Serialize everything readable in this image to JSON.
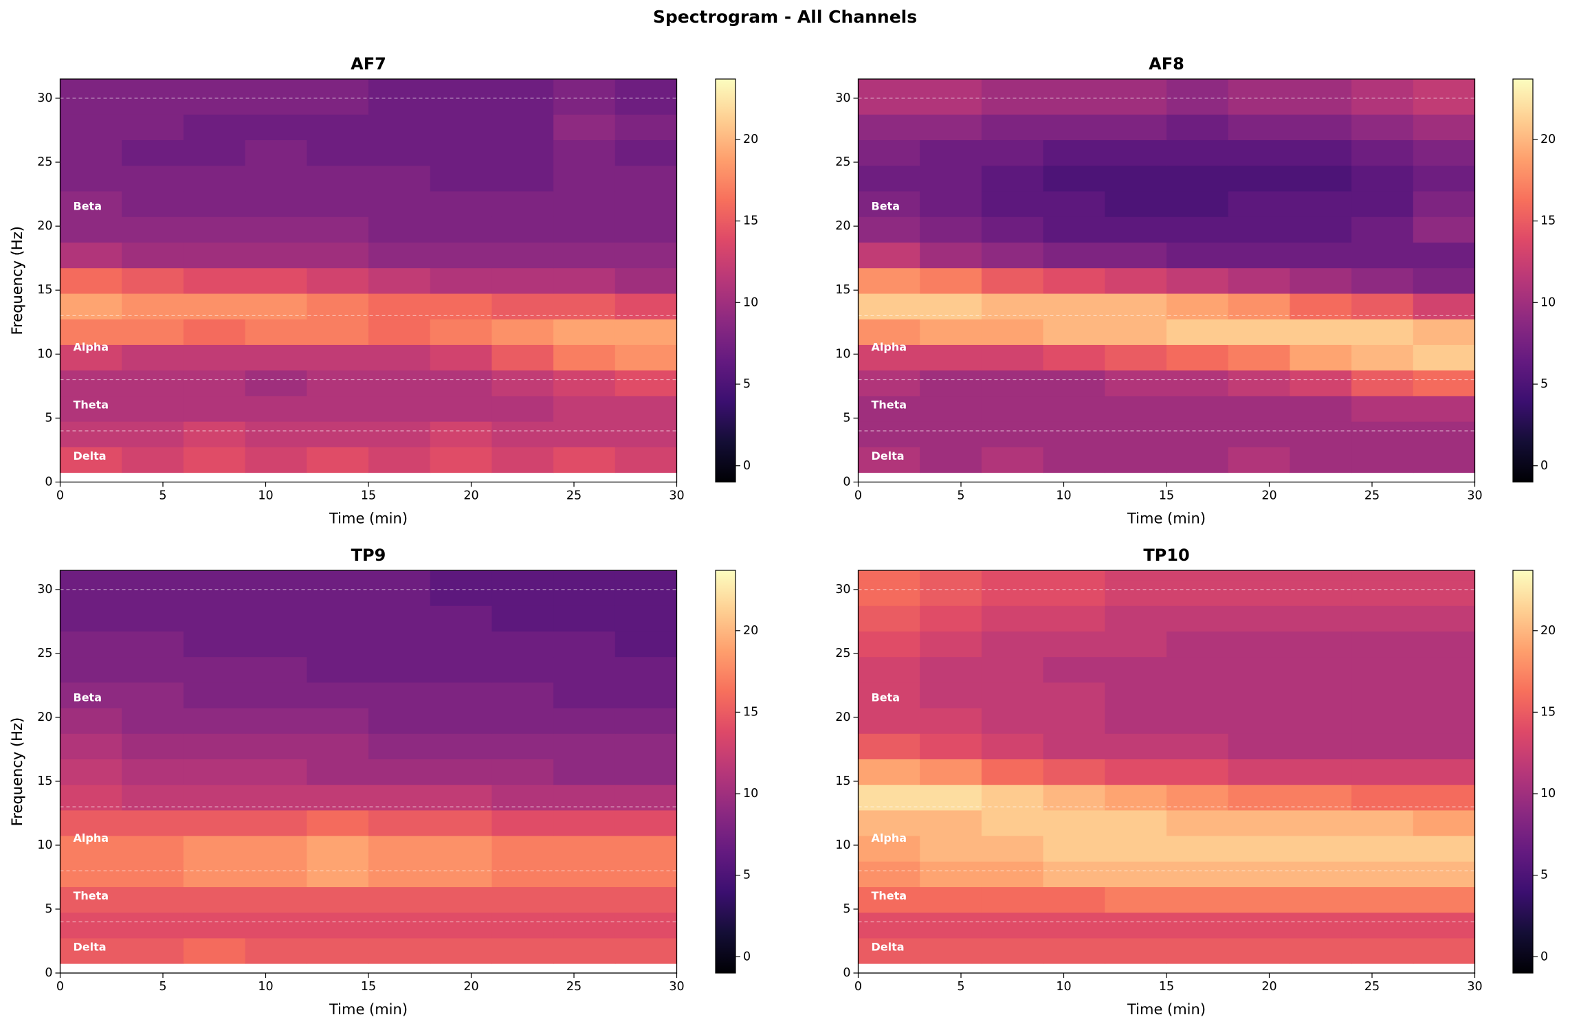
{
  "title": "Spectrogram - All Channels",
  "chart_data": [
    {
      "type": "heatmap",
      "title": "AF7",
      "xlabel": "Time (min)",
      "ylabel": "Frequency (Hz)",
      "colormap": "magma",
      "x": [
        1.5,
        4.5,
        7.5,
        10.5,
        13.5,
        16.5,
        19.5,
        22.5,
        25.5,
        28.5
      ],
      "y": [
        1.75,
        3.75,
        5.75,
        7.75,
        9.75,
        11.75,
        13.75,
        15.75,
        17.75,
        19.75,
        21.75,
        23.75,
        25.75,
        27.75,
        29.75,
        31.75
      ],
      "values": [
        [
          14,
          13,
          14,
          13,
          14,
          13,
          14,
          13,
          14,
          13
        ],
        [
          12,
          12,
          13,
          12,
          12,
          12,
          13,
          12,
          12,
          12
        ],
        [
          11,
          11,
          11,
          11,
          11,
          11,
          11,
          11,
          12,
          12
        ],
        [
          11,
          11,
          11,
          10,
          11,
          11,
          11,
          12,
          13,
          14
        ],
        [
          13,
          12,
          12,
          12,
          12,
          12,
          13,
          15,
          17,
          18
        ],
        [
          17,
          17,
          16,
          17,
          17,
          16,
          17,
          18,
          19,
          19
        ],
        [
          19,
          18,
          18,
          18,
          17,
          16,
          16,
          15,
          15,
          14
        ],
        [
          16,
          15,
          14,
          14,
          13,
          12,
          11,
          11,
          11,
          10
        ],
        [
          11,
          10,
          10,
          10,
          10,
          9,
          9,
          9,
          9,
          9
        ],
        [
          9,
          9,
          9,
          9,
          9,
          8,
          8,
          8,
          8,
          8
        ],
        [
          9,
          8,
          8,
          8,
          8,
          8,
          8,
          8,
          8,
          8
        ],
        [
          8,
          8,
          8,
          8,
          8,
          8,
          7,
          7,
          8,
          8
        ],
        [
          8,
          7,
          7,
          8,
          7,
          7,
          7,
          7,
          8,
          7
        ],
        [
          8,
          8,
          7,
          7,
          7,
          7,
          7,
          7,
          9,
          8
        ],
        [
          8,
          8,
          8,
          8,
          8,
          7,
          7,
          7,
          8,
          7
        ],
        [
          8,
          8,
          8,
          8,
          8,
          7,
          7,
          7,
          8,
          7
        ]
      ],
      "xlim": [
        0,
        30
      ],
      "ylim": [
        0,
        31.5
      ],
      "xticks": [
        0,
        5,
        10,
        15,
        20,
        25,
        30
      ],
      "yticks": [
        0,
        5,
        10,
        15,
        20,
        25,
        30
      ],
      "clim": [
        -1,
        23.7
      ],
      "cticks": [
        0,
        5,
        10,
        15,
        20
      ],
      "bands": {
        "edges": [
          0,
          4,
          8,
          13,
          30
        ],
        "labels": [
          "Delta",
          "Theta",
          "Alpha",
          "Beta"
        ]
      }
    },
    {
      "type": "heatmap",
      "title": "AF8",
      "xlabel": "Time (min)",
      "ylabel": "Frequency (Hz)",
      "colormap": "magma",
      "x": [
        1.5,
        4.5,
        7.5,
        10.5,
        13.5,
        16.5,
        19.5,
        22.5,
        25.5,
        28.5
      ],
      "y": [
        1.75,
        3.75,
        5.75,
        7.75,
        9.75,
        11.75,
        13.75,
        15.75,
        17.75,
        19.75,
        21.75,
        23.75,
        25.75,
        27.75,
        29.75,
        31.75
      ],
      "values": [
        [
          11,
          10,
          11,
          10,
          10,
          10,
          11,
          10,
          10,
          10
        ],
        [
          10,
          10,
          10,
          10,
          10,
          10,
          10,
          10,
          10,
          10
        ],
        [
          10,
          10,
          10,
          10,
          10,
          10,
          10,
          10,
          11,
          11
        ],
        [
          11,
          10,
          10,
          10,
          11,
          11,
          12,
          13,
          15,
          16
        ],
        [
          13,
          13,
          13,
          14,
          15,
          16,
          17,
          19,
          20,
          21
        ],
        [
          18,
          19,
          19,
          20,
          20,
          21,
          21,
          21,
          21,
          20
        ],
        [
          21,
          21,
          20,
          20,
          20,
          19,
          18,
          16,
          15,
          13
        ],
        [
          18,
          17,
          15,
          14,
          13,
          12,
          11,
          10,
          9,
          8
        ],
        [
          12,
          10,
          9,
          8,
          8,
          7,
          7,
          7,
          7,
          7
        ],
        [
          9,
          8,
          7,
          6,
          6,
          6,
          6,
          6,
          7,
          9
        ],
        [
          8,
          7,
          6,
          6,
          5,
          5,
          6,
          6,
          6,
          8
        ],
        [
          7,
          7,
          6,
          5,
          5,
          5,
          5,
          5,
          6,
          7
        ],
        [
          8,
          7,
          7,
          6,
          6,
          6,
          6,
          6,
          7,
          8
        ],
        [
          9,
          9,
          8,
          8,
          8,
          7,
          8,
          8,
          9,
          10
        ],
        [
          11,
          11,
          10,
          10,
          10,
          9,
          10,
          10,
          11,
          12
        ],
        [
          11,
          11,
          10,
          10,
          10,
          9,
          10,
          10,
          11,
          12
        ]
      ],
      "xlim": [
        0,
        30
      ],
      "ylim": [
        0,
        31.5
      ],
      "xticks": [
        0,
        5,
        10,
        15,
        20,
        25,
        30
      ],
      "yticks": [
        0,
        5,
        10,
        15,
        20,
        25,
        30
      ],
      "clim": [
        -1,
        23.7
      ],
      "cticks": [
        0,
        5,
        10,
        15,
        20
      ],
      "bands": {
        "edges": [
          0,
          4,
          8,
          13,
          30
        ],
        "labels": [
          "Delta",
          "Theta",
          "Alpha",
          "Beta"
        ]
      }
    },
    {
      "type": "heatmap",
      "title": "TP9",
      "xlabel": "Time (min)",
      "ylabel": "Frequency (Hz)",
      "colormap": "magma",
      "x": [
        1.5,
        4.5,
        7.5,
        10.5,
        13.5,
        16.5,
        19.5,
        22.5,
        25.5,
        28.5
      ],
      "y": [
        1.75,
        3.75,
        5.75,
        7.75,
        9.75,
        11.75,
        13.75,
        15.75,
        17.75,
        19.75,
        21.75,
        23.75,
        25.75,
        27.75,
        29.75,
        31.75
      ],
      "values": [
        [
          15,
          15,
          16,
          15,
          15,
          15,
          15,
          15,
          15,
          15
        ],
        [
          14,
          14,
          14,
          14,
          14,
          14,
          14,
          14,
          14,
          14
        ],
        [
          15,
          15,
          15,
          15,
          15,
          15,
          15,
          15,
          15,
          15
        ],
        [
          17,
          17,
          18,
          18,
          19,
          18,
          18,
          17,
          17,
          17
        ],
        [
          17,
          17,
          18,
          18,
          19,
          18,
          18,
          17,
          17,
          17
        ],
        [
          15,
          15,
          15,
          15,
          16,
          15,
          15,
          14,
          14,
          14
        ],
        [
          13,
          12,
          12,
          12,
          12,
          12,
          12,
          11,
          11,
          11
        ],
        [
          12,
          11,
          11,
          11,
          10,
          10,
          10,
          10,
          9,
          9
        ],
        [
          11,
          10,
          10,
          10,
          10,
          9,
          9,
          9,
          9,
          9
        ],
        [
          10,
          9,
          9,
          9,
          9,
          8,
          8,
          8,
          8,
          8
        ],
        [
          9,
          9,
          8,
          8,
          8,
          8,
          8,
          8,
          7,
          7
        ],
        [
          8,
          8,
          8,
          8,
          7,
          7,
          7,
          7,
          7,
          7
        ],
        [
          8,
          8,
          7,
          7,
          7,
          7,
          7,
          7,
          7,
          6
        ],
        [
          7,
          7,
          7,
          7,
          7,
          7,
          7,
          6,
          6,
          6
        ],
        [
          7,
          7,
          7,
          7,
          7,
          7,
          6,
          6,
          6,
          6
        ],
        [
          7,
          7,
          7,
          7,
          7,
          7,
          6,
          6,
          6,
          6
        ]
      ],
      "xlim": [
        0,
        30
      ],
      "ylim": [
        0,
        31.5
      ],
      "xticks": [
        0,
        5,
        10,
        15,
        20,
        25,
        30
      ],
      "yticks": [
        0,
        5,
        10,
        15,
        20,
        25,
        30
      ],
      "clim": [
        -1,
        23.7
      ],
      "cticks": [
        0,
        5,
        10,
        15,
        20
      ],
      "bands": {
        "edges": [
          0,
          4,
          8,
          13,
          30
        ],
        "labels": [
          "Delta",
          "Theta",
          "Alpha",
          "Beta"
        ]
      }
    },
    {
      "type": "heatmap",
      "title": "TP10",
      "xlabel": "Time (min)",
      "ylabel": "Frequency (Hz)",
      "colormap": "magma",
      "x": [
        1.5,
        4.5,
        7.5,
        10.5,
        13.5,
        16.5,
        19.5,
        22.5,
        25.5,
        28.5
      ],
      "y": [
        1.75,
        3.75,
        5.75,
        7.75,
        9.75,
        11.75,
        13.75,
        15.75,
        17.75,
        19.75,
        21.75,
        23.75,
        25.75,
        27.75,
        29.75,
        31.75
      ],
      "values": [
        [
          15,
          15,
          15,
          15,
          15,
          15,
          15,
          15,
          15,
          15
        ],
        [
          14,
          14,
          14,
          14,
          14,
          14,
          14,
          14,
          14,
          14
        ],
        [
          16,
          16,
          16,
          16,
          17,
          17,
          17,
          17,
          17,
          17
        ],
        [
          18,
          19,
          19,
          20,
          20,
          20,
          20,
          20,
          20,
          20
        ],
        [
          19,
          20,
          20,
          21,
          21,
          21,
          21,
          21,
          21,
          21
        ],
        [
          20,
          20,
          21,
          21,
          21,
          20,
          20,
          20,
          20,
          19
        ],
        [
          22,
          22,
          21,
          20,
          19,
          18,
          17,
          17,
          16,
          16
        ],
        [
          19,
          18,
          16,
          15,
          14,
          14,
          13,
          13,
          13,
          13
        ],
        [
          15,
          14,
          13,
          12,
          12,
          12,
          11,
          11,
          11,
          11
        ],
        [
          13,
          13,
          12,
          12,
          11,
          11,
          11,
          11,
          11,
          11
        ],
        [
          13,
          12,
          12,
          12,
          11,
          11,
          11,
          11,
          11,
          11
        ],
        [
          13,
          12,
          12,
          11,
          11,
          11,
          11,
          11,
          11,
          11
        ],
        [
          14,
          13,
          12,
          12,
          12,
          11,
          11,
          11,
          11,
          11
        ],
        [
          15,
          14,
          13,
          13,
          12,
          12,
          12,
          12,
          12,
          12
        ],
        [
          16,
          15,
          14,
          14,
          13,
          13,
          13,
          13,
          13,
          13
        ],
        [
          16,
          15,
          14,
          14,
          13,
          13,
          13,
          13,
          13,
          13
        ]
      ],
      "xlim": [
        0,
        30
      ],
      "ylim": [
        0,
        31.5
      ],
      "xticks": [
        0,
        5,
        10,
        15,
        20,
        25,
        30
      ],
      "yticks": [
        0,
        5,
        10,
        15,
        20,
        25,
        30
      ],
      "clim": [
        -1,
        23.7
      ],
      "cticks": [
        0,
        5,
        10,
        15,
        20
      ],
      "bands": {
        "edges": [
          0,
          4,
          8,
          13,
          30
        ],
        "labels": [
          "Delta",
          "Theta",
          "Alpha",
          "Beta"
        ]
      }
    }
  ]
}
